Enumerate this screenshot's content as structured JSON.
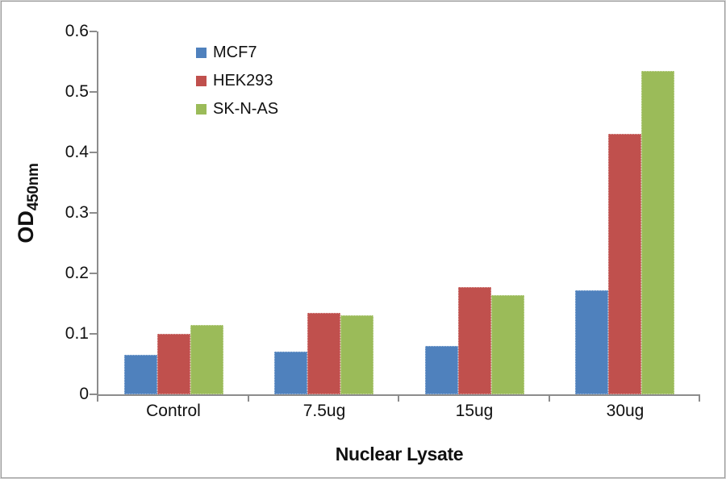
{
  "chart_data": {
    "type": "bar",
    "title": "",
    "categories": [
      "Control",
      "7.5ug",
      "15ug",
      "30ug"
    ],
    "series": [
      {
        "name": "MCF7",
        "color": "#4F81BD",
        "values": [
          0.065,
          0.07,
          0.08,
          0.172
        ]
      },
      {
        "name": "HEK293",
        "color": "#C0504D",
        "values": [
          0.1,
          0.134,
          0.177,
          0.43
        ]
      },
      {
        "name": "SK-N-AS",
        "color": "#9BBB59",
        "values": [
          0.115,
          0.13,
          0.164,
          0.535
        ]
      }
    ],
    "xlabel": "Nuclear Lysate",
    "ylabel": {
      "main": "OD",
      "sub": "450nm"
    },
    "ylim": [
      0,
      0.6
    ],
    "y_ticks": [
      "0",
      "0.1",
      "0.2",
      "0.3",
      "0.4",
      "0.5",
      "0.6"
    ],
    "grid": false,
    "legend_position": "upper-left-inside"
  },
  "colors": {
    "axis": "#8C8C8C",
    "text": "#111111",
    "frame_border": "#989898",
    "background": "#FFFFFF"
  }
}
